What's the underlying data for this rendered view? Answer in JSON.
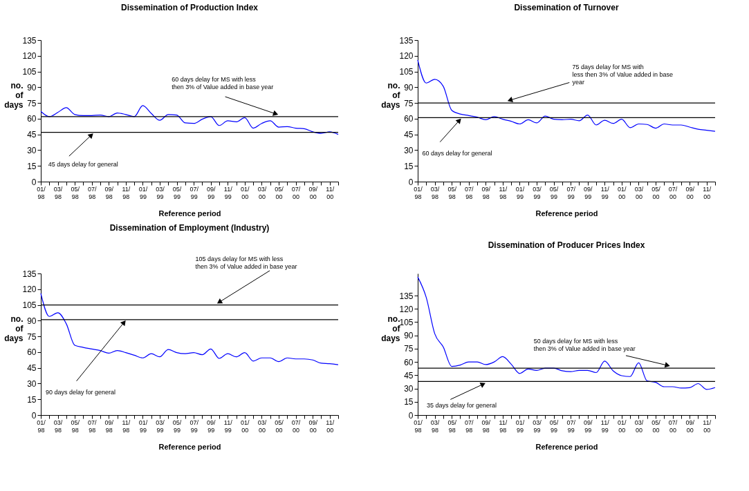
{
  "chart_data": [
    {
      "type": "line",
      "title": "Dissemination of Production Index",
      "xlabel": "Reference period",
      "ylabel": "no. of days",
      "categories": [
        "01/98",
        null,
        "03/98",
        null,
        "05/98",
        null,
        "07/98",
        null,
        "09/98",
        null,
        "11/98",
        null,
        "01/99",
        null,
        "03/99",
        null,
        "05/99",
        null,
        "07/99",
        null,
        "09/99",
        null,
        "11/99",
        null,
        "01/00",
        null,
        "03/00",
        null,
        "05/00",
        null,
        "07/00",
        null,
        "09/00",
        null,
        "11/00",
        null
      ],
      "series": [
        {
          "color": "#0000ff",
          "values": [
            67,
            62,
            66,
            70.5,
            64,
            63,
            63,
            63.5,
            62,
            65.5,
            64,
            62,
            72.5,
            65,
            58.5,
            64,
            63.5,
            56,
            55.5,
            59.5,
            62,
            53.5,
            58,
            57,
            61,
            51,
            55.5,
            58,
            52,
            52.5,
            51,
            50.5,
            47.5,
            46,
            47.5,
            45
          ]
        }
      ],
      "ylim": [
        0,
        135
      ],
      "yticks": [
        0,
        15,
        30,
        45,
        60,
        75,
        90,
        105,
        120,
        135
      ],
      "grid": false,
      "ref_lines": [
        {
          "axis": "y",
          "value": 62,
          "label": "60 days delay for MS with less\nthen 3% of Value added in base year",
          "color": "#000000"
        },
        {
          "axis": "y",
          "value": 47,
          "label": "45 days delay for general",
          "color": "#000000"
        }
      ]
    },
    {
      "type": "line",
      "title": "Dissemination of Turnover",
      "xlabel": "Reference period",
      "ylabel": "no. of days",
      "categories": [
        "01/98",
        null,
        "03/98",
        null,
        "05/98",
        null,
        "07/98",
        null,
        "09/98",
        null,
        "11/98",
        null,
        "01/99",
        null,
        "03/99",
        null,
        "05/99",
        null,
        "07/99",
        null,
        "09/99",
        null,
        "11/99",
        null,
        "01/00",
        null,
        "03/00",
        null,
        "05/00",
        null,
        "07/00",
        null,
        "09/00",
        null,
        "11/00",
        null
      ],
      "series": [
        {
          "color": "#0000ff",
          "values": [
            116,
            94,
            97.5,
            91,
            68,
            64.5,
            63,
            61.5,
            59,
            62,
            59.5,
            57.5,
            55,
            59,
            56,
            62.5,
            59.5,
            59,
            59.5,
            58,
            63.5,
            54,
            58.5,
            55.5,
            59.5,
            51.5,
            55,
            54.5,
            51,
            55,
            54,
            54,
            52,
            50,
            49,
            48
          ]
        }
      ],
      "ylim": [
        0,
        135
      ],
      "yticks": [
        0,
        15,
        30,
        45,
        60,
        75,
        90,
        105,
        120,
        135
      ],
      "grid": false,
      "ref_lines": [
        {
          "axis": "y",
          "value": 75,
          "label": "75 days delay for MS with\nless then 3% of Value added in base\nyear",
          "color": "#000000"
        },
        {
          "axis": "y",
          "value": 61,
          "label": "60 days delay for general",
          "color": "#000000"
        }
      ]
    },
    {
      "type": "line",
      "title": "Dissemination of Employment (Industry)",
      "xlabel": "Reference period",
      "ylabel": "no. of days",
      "categories": [
        "01/98",
        null,
        "03/98",
        null,
        "05/98",
        null,
        "07/98",
        null,
        "09/98",
        null,
        "11/98",
        null,
        "01/99",
        null,
        "03/99",
        null,
        "05/99",
        null,
        "07/99",
        null,
        "09/99",
        null,
        "11/99",
        null,
        "01/00",
        null,
        "03/00",
        null,
        "05/00",
        null,
        "07/00",
        null,
        "09/00",
        null,
        "11/00",
        null
      ],
      "series": [
        {
          "color": "#0000ff",
          "values": [
            116,
            94,
            97.5,
            87,
            66.5,
            64.5,
            63,
            61.5,
            59,
            61.5,
            59.5,
            57,
            54.5,
            58.5,
            55.5,
            62.5,
            59.5,
            58.5,
            59.5,
            57.5,
            63,
            54,
            58.5,
            55.5,
            59.5,
            51.5,
            54.5,
            54.5,
            51,
            54.5,
            53.5,
            53.5,
            52.5,
            49.5,
            49,
            48
          ]
        }
      ],
      "ylim": [
        0,
        135
      ],
      "yticks": [
        0,
        15,
        30,
        45,
        60,
        75,
        90,
        105,
        120,
        135
      ],
      "grid": false,
      "ref_lines": [
        {
          "axis": "y",
          "value": 105,
          "label": "105 days delay for MS with less\nthen 3% of Value added in base year",
          "color": "#000000"
        },
        {
          "axis": "y",
          "value": 91,
          "label": "90 days delay for general",
          "color": "#000000"
        }
      ]
    },
    {
      "type": "line",
      "title": "Dissemination of Producer Prices Index",
      "xlabel": "Reference period",
      "ylabel": "no. of days",
      "categories": [
        "01/98",
        null,
        "03/98",
        null,
        "05/98",
        null,
        "07/98",
        null,
        "09/98",
        null,
        "11/98",
        null,
        "01/99",
        null,
        "03/99",
        null,
        "05/99",
        null,
        "07/99",
        null,
        "09/99",
        null,
        "11/99",
        null,
        "01/00",
        null,
        "03/00",
        null,
        "05/00",
        null,
        "07/00",
        null,
        "09/00",
        null,
        "11/00",
        null
      ],
      "series": [
        {
          "color": "#0000ff",
          "values": [
            156,
            133,
            92,
            77,
            55,
            56.5,
            60,
            60,
            57,
            60,
            66,
            57.5,
            47,
            52,
            50.5,
            53,
            53,
            50,
            49,
            50.5,
            50.5,
            48,
            61,
            50,
            44.5,
            43.5,
            59,
            38.5,
            37,
            32,
            32,
            30.5,
            31,
            35.5,
            29,
            31
          ]
        }
      ],
      "ylim": [
        0,
        160
      ],
      "yticks": [
        0,
        15,
        30,
        45,
        60,
        75,
        90,
        105,
        120,
        135
      ],
      "grid": false,
      "ref_lines": [
        {
          "axis": "y",
          "value": 53,
          "label": "50 days delay for MS with less\nthen 3% of Value added in base year",
          "color": "#000000"
        },
        {
          "axis": "y",
          "value": 38,
          "label": "35 days delay for general",
          "color": "#000000"
        }
      ]
    }
  ]
}
